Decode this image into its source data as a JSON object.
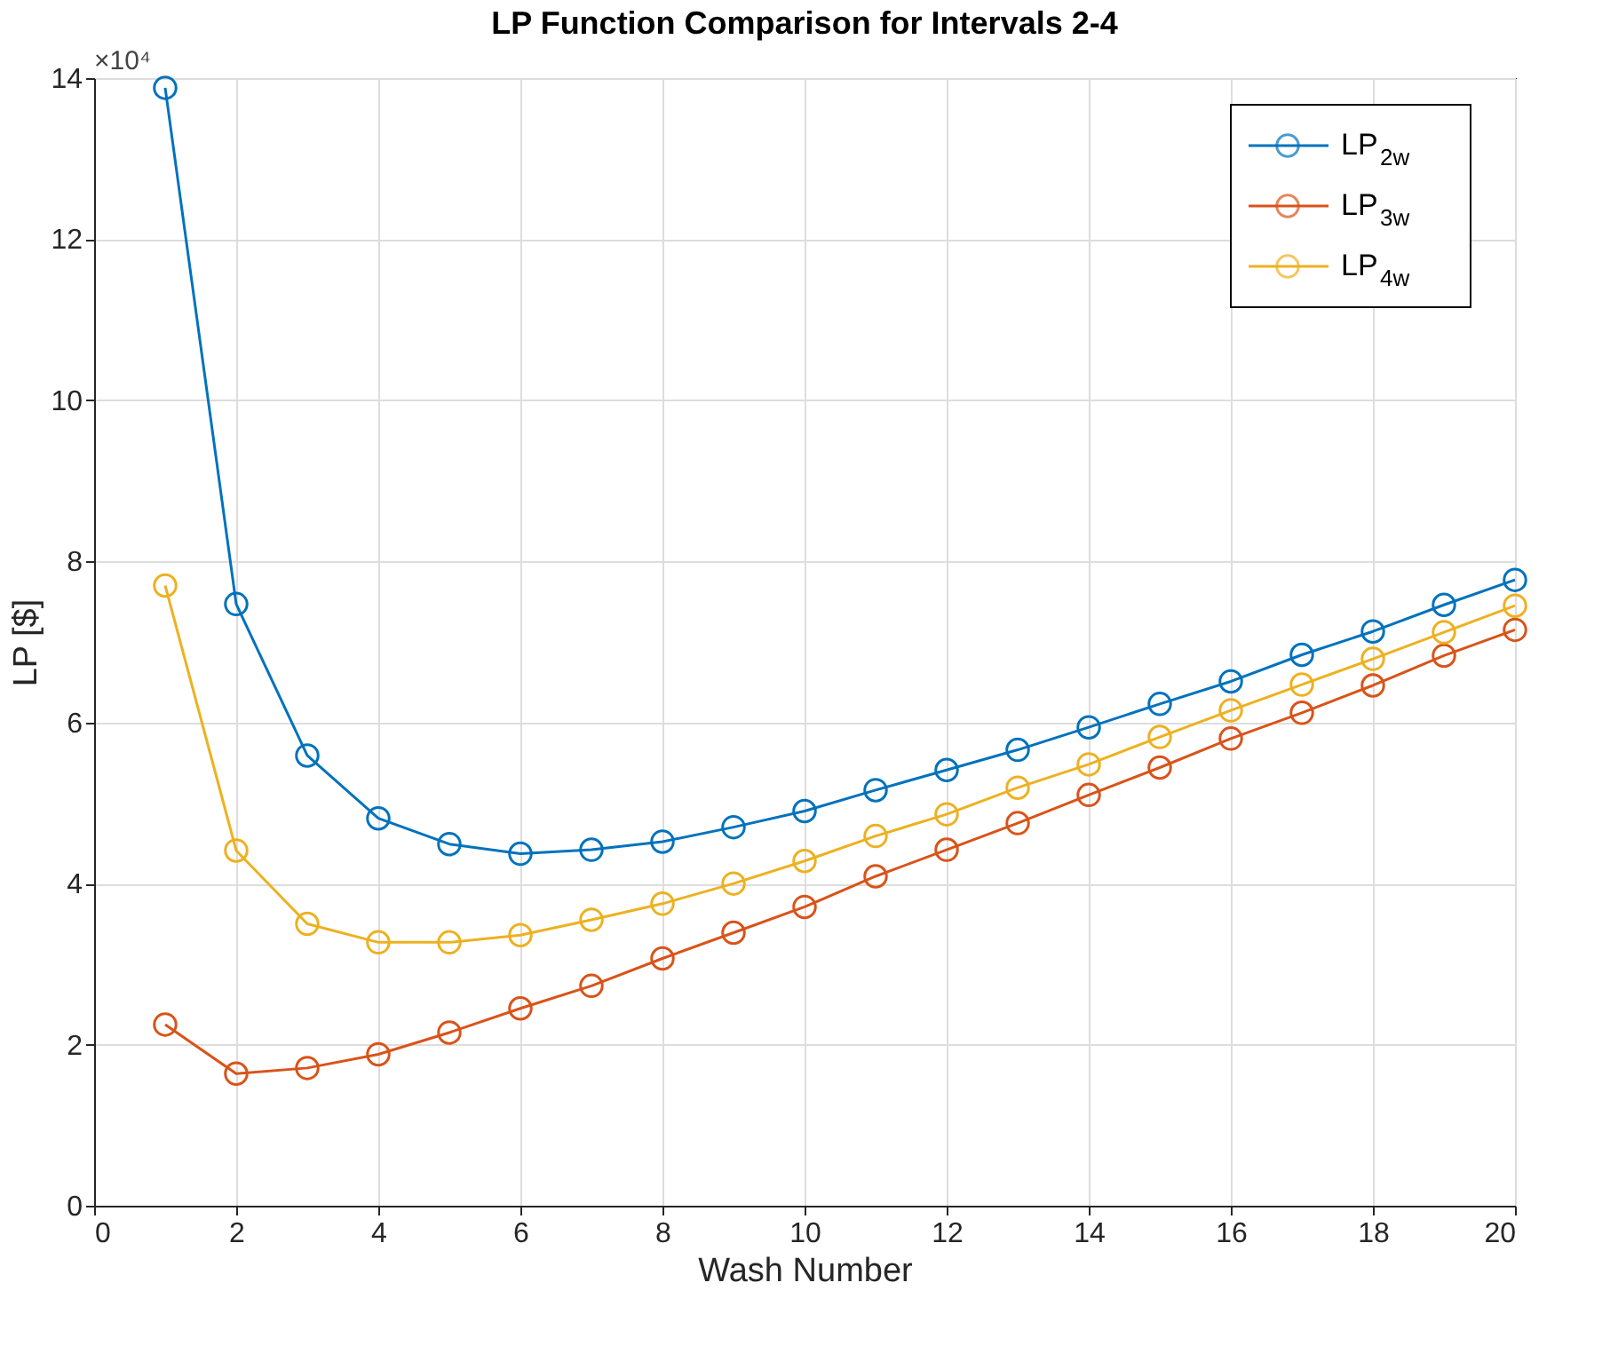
{
  "chart_data": {
    "type": "line",
    "title": "LP Function Comparison for Intervals 2-4",
    "xlabel": "Wash Number",
    "ylabel": "LP [$]",
    "annotations": [
      "×10⁴"
    ],
    "x": [
      1,
      2,
      3,
      4,
      5,
      6,
      7,
      8,
      9,
      10,
      11,
      12,
      13,
      14,
      15,
      16,
      17,
      18,
      19,
      20
    ],
    "series": [
      {
        "name": "LP$_{2w}$",
        "color": "#0072bd",
        "values": [
          13.88,
          7.47,
          5.59,
          4.81,
          4.49,
          4.37,
          4.42,
          4.52,
          4.7,
          4.9,
          5.16,
          5.41,
          5.66,
          5.94,
          6.23,
          6.51,
          6.84,
          7.13,
          7.46,
          7.77
        ]
      },
      {
        "name": "LP$_{3w}$",
        "color": "#d95319",
        "values": [
          2.25,
          1.64,
          1.71,
          1.88,
          2.15,
          2.45,
          2.73,
          3.07,
          3.39,
          3.71,
          4.09,
          4.42,
          4.75,
          5.1,
          5.44,
          5.8,
          6.12,
          6.46,
          6.83,
          7.15
        ]
      },
      {
        "name": "LP$_{4w}$",
        "color": "#edb120",
        "values": [
          7.7,
          4.41,
          3.5,
          3.27,
          3.27,
          3.36,
          3.55,
          3.75,
          4.0,
          4.28,
          4.59,
          4.86,
          5.19,
          5.48,
          5.82,
          6.15,
          6.47,
          6.79,
          7.12,
          7.45
        ]
      }
    ],
    "xlim": [
      0,
      20
    ],
    "xticks": [
      0,
      2,
      4,
      6,
      8,
      10,
      12,
      14,
      16,
      18,
      20
    ],
    "ylim": [
      0,
      14
    ],
    "yticks": [
      0,
      2,
      4,
      6,
      8,
      10,
      12,
      14
    ],
    "grid": true,
    "legend": "top right",
    "marker": "circle",
    "line_style": "solid"
  }
}
